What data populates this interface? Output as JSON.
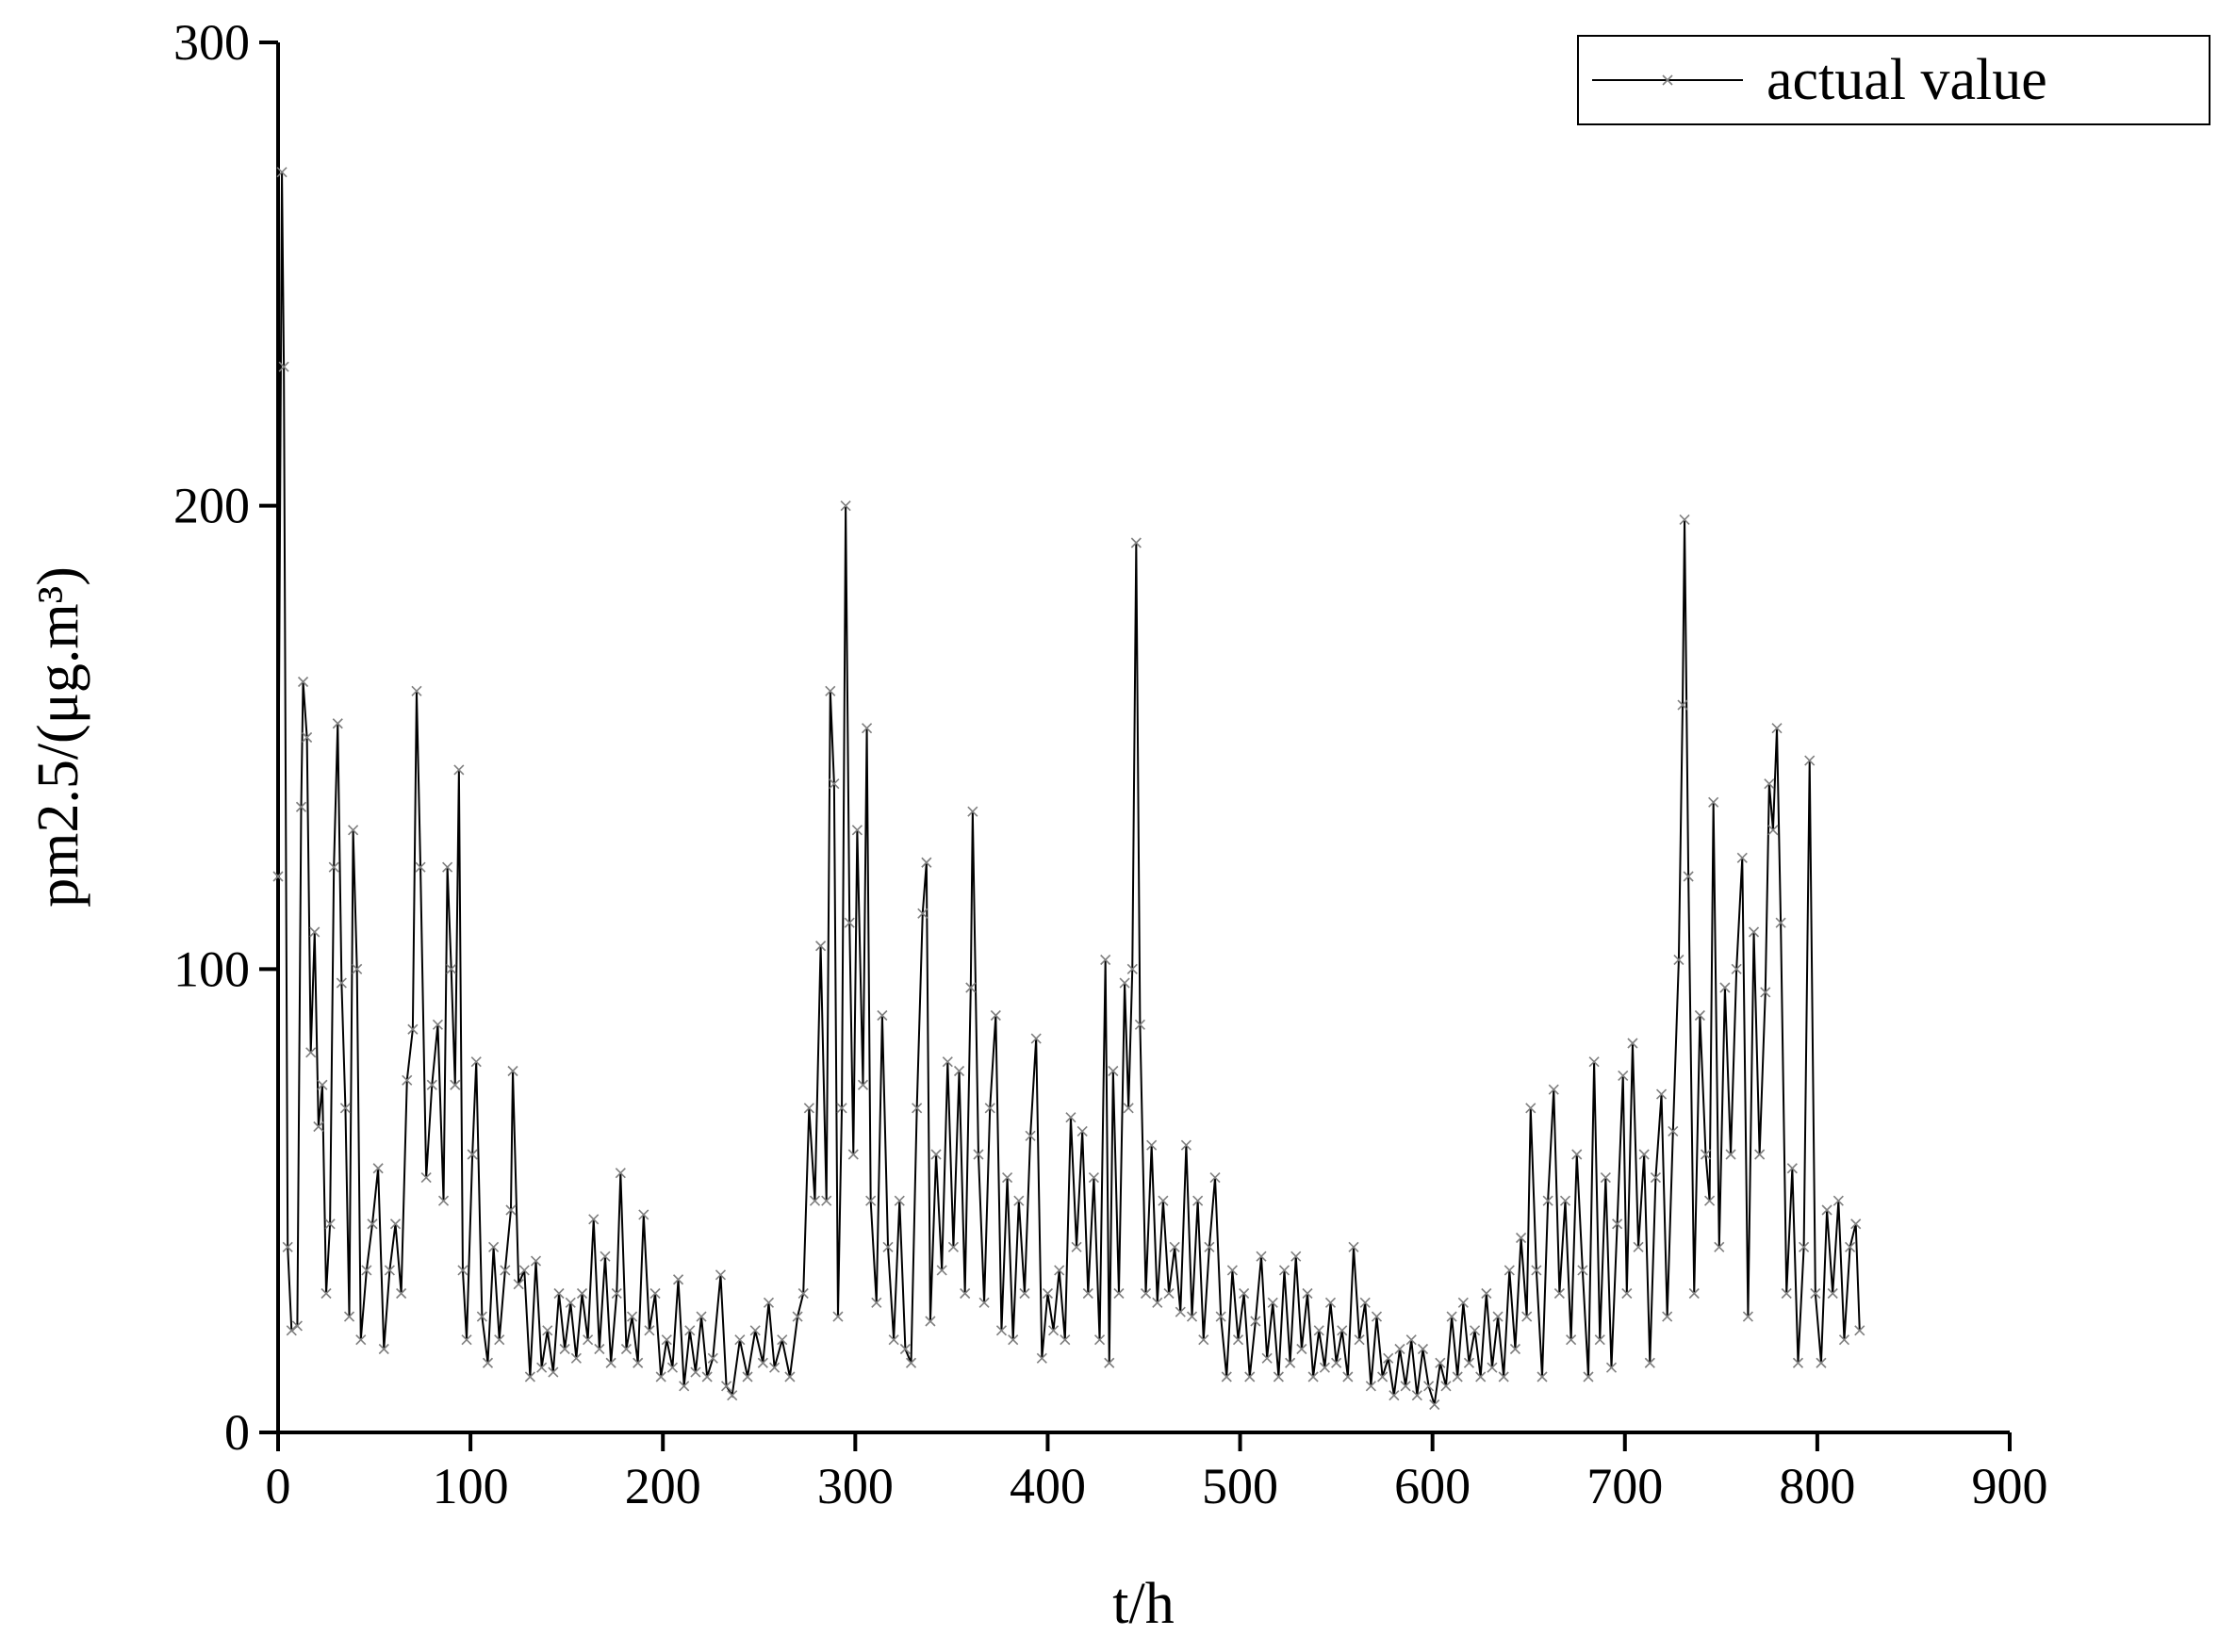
{
  "chart_data": {
    "type": "line",
    "x_label": "t/h",
    "y_label": "pm2.5/(μg.m³)",
    "xlim": [
      0,
      900
    ],
    "ylim": [
      0,
      300
    ],
    "xticks": [
      0,
      100,
      200,
      300,
      400,
      500,
      600,
      700,
      800,
      900
    ],
    "yticks": [
      0,
      100,
      200,
      300
    ],
    "legend": "upper right",
    "grid": false,
    "x": [
      0,
      2,
      3,
      5,
      7,
      10,
      12,
      13,
      15,
      17,
      19,
      21,
      23,
      25,
      27,
      29,
      31,
      33,
      35,
      37,
      39,
      41,
      43,
      46,
      49,
      52,
      55,
      58,
      61,
      64,
      67,
      70,
      72,
      74,
      77,
      80,
      83,
      86,
      88,
      90,
      92,
      94,
      96,
      98,
      101,
      103,
      106,
      109,
      112,
      115,
      118,
      121,
      122,
      125,
      128,
      131,
      134,
      137,
      140,
      143,
      146,
      149,
      152,
      155,
      158,
      161,
      164,
      167,
      170,
      173,
      176,
      178,
      181,
      184,
      187,
      190,
      193,
      196,
      199,
      202,
      205,
      208,
      211,
      214,
      217,
      220,
      223,
      226,
      230,
      233,
      236,
      240,
      244,
      248,
      252,
      255,
      258,
      262,
      266,
      270,
      273,
      276,
      279,
      282,
      285,
      287,
      289,
      291,
      293,
      295,
      297,
      299,
      301,
      304,
      306,
      308,
      311,
      314,
      317,
      320,
      323,
      326,
      329,
      332,
      335,
      337,
      339,
      342,
      345,
      348,
      351,
      354,
      357,
      360,
      361,
      364,
      367,
      370,
      373,
      376,
      379,
      382,
      385,
      388,
      391,
      394,
      397,
      400,
      403,
      406,
      409,
      412,
      415,
      418,
      421,
      424,
      427,
      430,
      432,
      434,
      437,
      440,
      442,
      444,
      446,
      448,
      451,
      454,
      457,
      460,
      463,
      466,
      469,
      472,
      475,
      478,
      481,
      484,
      487,
      490,
      493,
      496,
      499,
      502,
      505,
      508,
      511,
      514,
      517,
      520,
      523,
      526,
      529,
      532,
      535,
      538,
      541,
      544,
      547,
      550,
      553,
      556,
      559,
      562,
      565,
      568,
      571,
      574,
      577,
      580,
      583,
      586,
      589,
      592,
      595,
      598,
      601,
      604,
      607,
      610,
      613,
      616,
      619,
      622,
      625,
      628,
      631,
      634,
      637,
      640,
      643,
      646,
      649,
      651,
      654,
      657,
      660,
      663,
      666,
      669,
      672,
      675,
      678,
      681,
      684,
      687,
      690,
      693,
      696,
      699,
      701,
      704,
      707,
      710,
      713,
      716,
      719,
      722,
      725,
      728,
      730,
      731,
      733,
      736,
      739,
      742,
      744,
      746,
      749,
      752,
      755,
      758,
      761,
      764,
      767,
      770,
      773,
      775,
      777,
      779,
      781,
      784,
      787,
      790,
      793,
      796,
      799,
      802,
      805,
      808,
      811,
      814,
      817,
      820,
      822
    ],
    "series": [
      {
        "name": "actual value",
        "color": "#000000",
        "marker_color": "#7f7f7f",
        "values": [
          120,
          272,
          230,
          40,
          22,
          23,
          135,
          162,
          150,
          82,
          108,
          66,
          75,
          30,
          45,
          122,
          153,
          97,
          70,
          25,
          130,
          100,
          20,
          35,
          45,
          57,
          18,
          35,
          45,
          30,
          76,
          87,
          160,
          122,
          55,
          75,
          88,
          50,
          122,
          100,
          75,
          143,
          35,
          20,
          60,
          80,
          25,
          15,
          40,
          20,
          35,
          48,
          78,
          32,
          35,
          12,
          37,
          14,
          22,
          13,
          30,
          18,
          28,
          16,
          30,
          20,
          46,
          18,
          38,
          15,
          30,
          56,
          18,
          25,
          15,
          47,
          22,
          30,
          12,
          20,
          14,
          33,
          10,
          22,
          13,
          25,
          12,
          16,
          34,
          10,
          8,
          20,
          12,
          22,
          15,
          28,
          14,
          20,
          12,
          25,
          30,
          70,
          50,
          105,
          50,
          160,
          140,
          25,
          70,
          200,
          110,
          60,
          130,
          75,
          152,
          50,
          28,
          90,
          40,
          20,
          50,
          18,
          15,
          70,
          112,
          123,
          24,
          60,
          35,
          80,
          40,
          78,
          30,
          96,
          134,
          60,
          28,
          70,
          90,
          22,
          55,
          20,
          50,
          30,
          64,
          85,
          16,
          30,
          22,
          35,
          20,
          68,
          40,
          65,
          30,
          55,
          20,
          102,
          15,
          78,
          30,
          97,
          70,
          100,
          192,
          88,
          30,
          62,
          28,
          50,
          30,
          40,
          26,
          62,
          25,
          50,
          20,
          40,
          55,
          25,
          12,
          35,
          20,
          30,
          12,
          24,
          38,
          16,
          28,
          12,
          35,
          15,
          38,
          18,
          30,
          12,
          22,
          14,
          28,
          15,
          22,
          12,
          40,
          20,
          28,
          10,
          25,
          12,
          16,
          8,
          18,
          10,
          20,
          8,
          18,
          10,
          6,
          15,
          10,
          25,
          12,
          28,
          15,
          22,
          12,
          30,
          14,
          25,
          12,
          35,
          18,
          42,
          25,
          70,
          35,
          12,
          50,
          74,
          30,
          50,
          20,
          60,
          35,
          12,
          80,
          20,
          55,
          14,
          45,
          77,
          30,
          84,
          40,
          60,
          15,
          55,
          73,
          25,
          65,
          102,
          157,
          197,
          120,
          30,
          90,
          60,
          50,
          136,
          40,
          96,
          60,
          100,
          124,
          25,
          108,
          60,
          95,
          140,
          130,
          152,
          110,
          30,
          57,
          15,
          40,
          145,
          30,
          15,
          48,
          30,
          50,
          20,
          40,
          45,
          22
        ]
      }
    ]
  }
}
